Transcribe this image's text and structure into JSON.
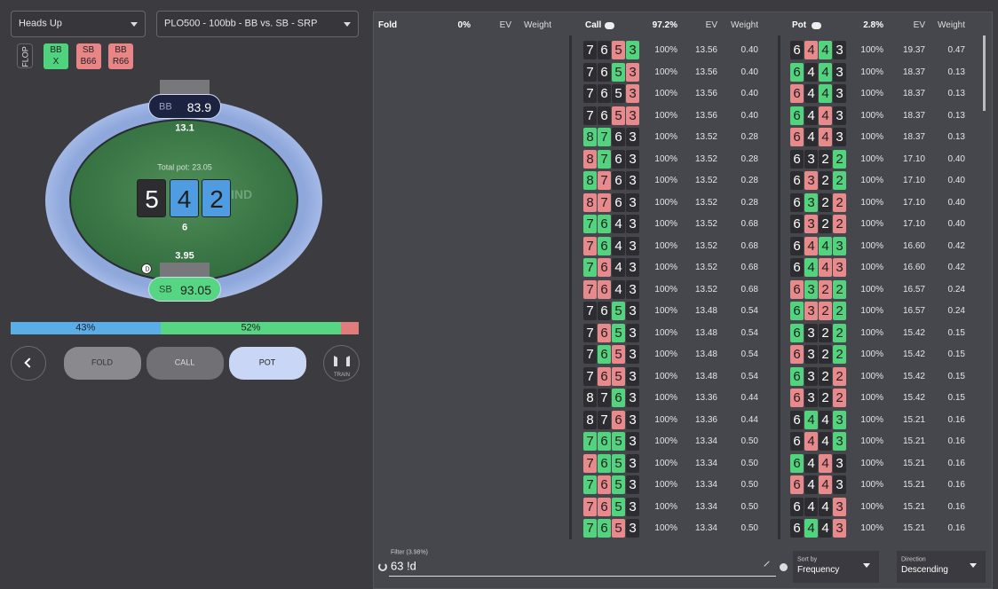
{
  "header": {
    "game_select": "Heads Up",
    "scenario_select": "PLO500 - 100bb - BB vs. SB - SRP"
  },
  "history": {
    "street": "FLOP",
    "actions": [
      {
        "player": "BB",
        "action": "X",
        "color": "#4fd47e"
      },
      {
        "player": "SB",
        "action": "B66",
        "color": "#e88587"
      },
      {
        "player": "BB",
        "action": "R66",
        "color": "#e88587"
      }
    ]
  },
  "table": {
    "bb": {
      "name": "BB",
      "stack": "83.9",
      "bet": "13.1"
    },
    "total_pot": "Total pot: 23.05",
    "board": [
      {
        "rank": "5",
        "suit": "s"
      },
      {
        "rank": "4",
        "suit": "d"
      },
      {
        "rank": "2",
        "suit": "d"
      }
    ],
    "pot_chips": "6",
    "watermark": "IND",
    "dealer": "D",
    "sb": {
      "name": "SB",
      "stack": "93.05",
      "bet": "3.95"
    }
  },
  "frequency_bar": [
    {
      "value": 43,
      "label": "43%",
      "color": "#5aaee8"
    },
    {
      "value": 52,
      "label": "52%",
      "color": "#56d682"
    },
    {
      "value": 5,
      "color": "#e07c7c"
    }
  ],
  "buttons": [
    "FOLD",
    "CALL",
    "POT"
  ],
  "train": "TRAIN",
  "strategy": {
    "columns": [
      {
        "action": "Fold",
        "freq": "0%",
        "ev": "EV",
        "weight": "Weight"
      },
      {
        "action": "Call",
        "freq": "97.2%",
        "ev": "EV",
        "weight": "Weight",
        "rows": [
          {
            "cards": [
              "7",
              "6",
              "5",
              "3"
            ],
            "suits": "sshc",
            "freq": "100%",
            "ev": "13.56",
            "weight": "0.40"
          },
          {
            "cards": [
              "7",
              "6",
              "5",
              "3"
            ],
            "suits": "ssch",
            "freq": "100%",
            "ev": "13.56",
            "weight": "0.40"
          },
          {
            "cards": [
              "7",
              "6",
              "5",
              "3"
            ],
            "suits": "sssh",
            "freq": "100%",
            "ev": "13.56",
            "weight": "0.40"
          },
          {
            "cards": [
              "7",
              "6",
              "5",
              "3"
            ],
            "suits": "sshh",
            "freq": "100%",
            "ev": "13.56",
            "weight": "0.40"
          },
          {
            "cards": [
              "8",
              "7",
              "6",
              "3"
            ],
            "suits": "ccss",
            "freq": "100%",
            "ev": "13.52",
            "weight": "0.28"
          },
          {
            "cards": [
              "8",
              "7",
              "6",
              "3"
            ],
            "suits": "hcss",
            "freq": "100%",
            "ev": "13.52",
            "weight": "0.28"
          },
          {
            "cards": [
              "8",
              "7",
              "6",
              "3"
            ],
            "suits": "chss",
            "freq": "100%",
            "ev": "13.52",
            "weight": "0.28"
          },
          {
            "cards": [
              "8",
              "7",
              "6",
              "3"
            ],
            "suits": "hhss",
            "freq": "100%",
            "ev": "13.52",
            "weight": "0.28"
          },
          {
            "cards": [
              "7",
              "6",
              "4",
              "3"
            ],
            "suits": "ccss",
            "freq": "100%",
            "ev": "13.52",
            "weight": "0.68"
          },
          {
            "cards": [
              "7",
              "6",
              "4",
              "3"
            ],
            "suits": "hcss",
            "freq": "100%",
            "ev": "13.52",
            "weight": "0.68"
          },
          {
            "cards": [
              "7",
              "6",
              "4",
              "3"
            ],
            "suits": "chss",
            "freq": "100%",
            "ev": "13.52",
            "weight": "0.68"
          },
          {
            "cards": [
              "7",
              "6",
              "4",
              "3"
            ],
            "suits": "hhss",
            "freq": "100%",
            "ev": "13.52",
            "weight": "0.68"
          },
          {
            "cards": [
              "7",
              "6",
              "5",
              "3"
            ],
            "suits": "sscs",
            "freq": "100%",
            "ev": "13.48",
            "weight": "0.54"
          },
          {
            "cards": [
              "7",
              "6",
              "5",
              "3"
            ],
            "suits": "shcs",
            "freq": "100%",
            "ev": "13.48",
            "weight": "0.54"
          },
          {
            "cards": [
              "7",
              "6",
              "5",
              "3"
            ],
            "suits": "schs",
            "freq": "100%",
            "ev": "13.48",
            "weight": "0.54"
          },
          {
            "cards": [
              "7",
              "6",
              "5",
              "3"
            ],
            "suits": "shhs",
            "freq": "100%",
            "ev": "13.48",
            "weight": "0.54"
          },
          {
            "cards": [
              "8",
              "7",
              "6",
              "3"
            ],
            "suits": "sscs",
            "freq": "100%",
            "ev": "13.36",
            "weight": "0.44"
          },
          {
            "cards": [
              "8",
              "7",
              "6",
              "3"
            ],
            "suits": "sshs",
            "freq": "100%",
            "ev": "13.36",
            "weight": "0.44"
          },
          {
            "cards": [
              "7",
              "6",
              "5",
              "3"
            ],
            "suits": "cccs",
            "freq": "100%",
            "ev": "13.34",
            "weight": "0.50"
          },
          {
            "cards": [
              "7",
              "6",
              "5",
              "3"
            ],
            "suits": "hccs",
            "freq": "100%",
            "ev": "13.34",
            "weight": "0.50"
          },
          {
            "cards": [
              "7",
              "6",
              "5",
              "3"
            ],
            "suits": "chcs",
            "freq": "100%",
            "ev": "13.34",
            "weight": "0.50"
          },
          {
            "cards": [
              "7",
              "6",
              "5",
              "3"
            ],
            "suits": "hhcs",
            "freq": "100%",
            "ev": "13.34",
            "weight": "0.50"
          },
          {
            "cards": [
              "7",
              "6",
              "5",
              "3"
            ],
            "suits": "cchs",
            "freq": "100%",
            "ev": "13.34",
            "weight": "0.50"
          }
        ]
      },
      {
        "action": "Pot",
        "freq": "2.8%",
        "ev": "EV",
        "weight": "Weight",
        "rows": [
          {
            "cards": [
              "6",
              "4",
              "4",
              "3"
            ],
            "suits": "shcs",
            "freq": "100%",
            "ev": "19.37",
            "weight": "0.47"
          },
          {
            "cards": [
              "6",
              "4",
              "4",
              "3"
            ],
            "suits": "cscs",
            "freq": "100%",
            "ev": "18.37",
            "weight": "0.13"
          },
          {
            "cards": [
              "6",
              "4",
              "4",
              "3"
            ],
            "suits": "hscs",
            "freq": "100%",
            "ev": "18.37",
            "weight": "0.13"
          },
          {
            "cards": [
              "6",
              "4",
              "4",
              "3"
            ],
            "suits": "cshs",
            "freq": "100%",
            "ev": "18.37",
            "weight": "0.13"
          },
          {
            "cards": [
              "6",
              "4",
              "4",
              "3"
            ],
            "suits": "hshs",
            "freq": "100%",
            "ev": "18.37",
            "weight": "0.13"
          },
          {
            "cards": [
              "6",
              "3",
              "2",
              "2"
            ],
            "suits": "sssc",
            "freq": "100%",
            "ev": "17.10",
            "weight": "0.40"
          },
          {
            "cards": [
              "6",
              "3",
              "2",
              "2"
            ],
            "suits": "shsc",
            "freq": "100%",
            "ev": "17.10",
            "weight": "0.40"
          },
          {
            "cards": [
              "6",
              "3",
              "2",
              "2"
            ],
            "suits": "scsh",
            "freq": "100%",
            "ev": "17.10",
            "weight": "0.40"
          },
          {
            "cards": [
              "6",
              "3",
              "2",
              "2"
            ],
            "suits": "shsh",
            "freq": "100%",
            "ev": "17.10",
            "weight": "0.40"
          },
          {
            "cards": [
              "6",
              "4",
              "4",
              "3"
            ],
            "suits": "shcc",
            "freq": "100%",
            "ev": "16.60",
            "weight": "0.42"
          },
          {
            "cards": [
              "6",
              "4",
              "4",
              "3"
            ],
            "suits": "schh",
            "freq": "100%",
            "ev": "16.60",
            "weight": "0.42"
          },
          {
            "cards": [
              "6",
              "3",
              "2",
              "2"
            ],
            "suits": "hchc",
            "freq": "100%",
            "ev": "16.57",
            "weight": "0.24"
          },
          {
            "cards": [
              "6",
              "3",
              "2",
              "2"
            ],
            "suits": "chhc",
            "freq": "100%",
            "ev": "16.57",
            "weight": "0.24"
          },
          {
            "cards": [
              "6",
              "3",
              "2",
              "2"
            ],
            "suits": "cssc",
            "freq": "100%",
            "ev": "15.42",
            "weight": "0.15"
          },
          {
            "cards": [
              "6",
              "3",
              "2",
              "2"
            ],
            "suits": "hssc",
            "freq": "100%",
            "ev": "15.42",
            "weight": "0.15"
          },
          {
            "cards": [
              "6",
              "3",
              "2",
              "2"
            ],
            "suits": "cssh",
            "freq": "100%",
            "ev": "15.42",
            "weight": "0.15"
          },
          {
            "cards": [
              "6",
              "3",
              "2",
              "2"
            ],
            "suits": "hssh",
            "freq": "100%",
            "ev": "15.42",
            "weight": "0.15"
          },
          {
            "cards": [
              "6",
              "4",
              "4",
              "3"
            ],
            "suits": "scsc",
            "freq": "100%",
            "ev": "15.21",
            "weight": "0.16"
          },
          {
            "cards": [
              "6",
              "4",
              "4",
              "3"
            ],
            "suits": "shsc",
            "freq": "100%",
            "ev": "15.21",
            "weight": "0.16"
          },
          {
            "cards": [
              "6",
              "4",
              "4",
              "3"
            ],
            "suits": "cshs",
            "freq": "100%",
            "ev": "15.21",
            "weight": "0.16"
          },
          {
            "cards": [
              "6",
              "4",
              "4",
              "3"
            ],
            "suits": "hshs",
            "freq": "100%",
            "ev": "15.21",
            "weight": "0.16"
          },
          {
            "cards": [
              "6",
              "4",
              "4",
              "3"
            ],
            "suits": "sssh",
            "freq": "100%",
            "ev": "15.21",
            "weight": "0.16"
          },
          {
            "cards": [
              "6",
              "4",
              "4",
              "3"
            ],
            "suits": "scsh",
            "freq": "100%",
            "ev": "15.21",
            "weight": "0.16"
          }
        ]
      }
    ]
  },
  "filter": {
    "label": "Filter (3.98%)",
    "query": "63 !d"
  },
  "sort": {
    "label": "Sort by",
    "value": "Frequency"
  },
  "direction": {
    "label": "Direction",
    "value": "Descending"
  }
}
